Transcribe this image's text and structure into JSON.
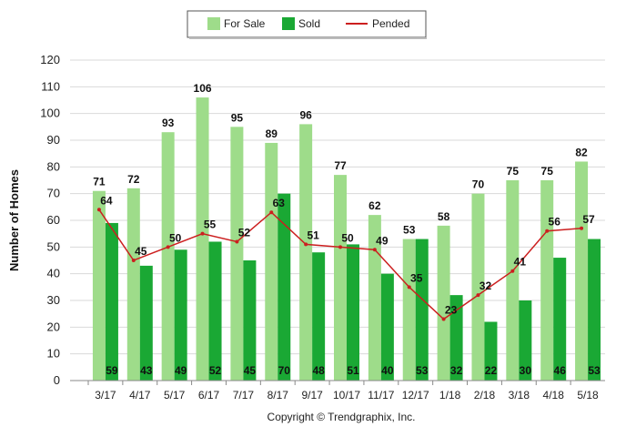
{
  "chart_data": {
    "type": "bar",
    "categories": [
      "3/17",
      "4/17",
      "5/17",
      "6/17",
      "7/17",
      "8/17",
      "9/17",
      "10/17",
      "11/17",
      "12/17",
      "1/18",
      "2/18",
      "3/18",
      "4/18",
      "5/18"
    ],
    "series": [
      {
        "name": "For Sale",
        "type": "bar",
        "color": "#9edc8a",
        "values": [
          71,
          72,
          93,
          106,
          95,
          89,
          96,
          77,
          62,
          53,
          58,
          70,
          75,
          75,
          82
        ]
      },
      {
        "name": "Sold",
        "type": "bar",
        "color": "#1aa834",
        "values": [
          59,
          43,
          49,
          52,
          45,
          70,
          48,
          51,
          40,
          53,
          32,
          22,
          30,
          46,
          53
        ]
      },
      {
        "name": "Pended",
        "type": "line",
        "color": "#cc1f1f",
        "values": [
          64,
          45,
          50,
          55,
          52,
          63,
          51,
          50,
          49,
          35,
          23,
          32,
          41,
          56,
          57
        ]
      }
    ],
    "ylabel": "Number of Homes",
    "ylim": [
      0,
      120
    ],
    "yticks": [
      0,
      10,
      20,
      30,
      40,
      50,
      60,
      70,
      80,
      90,
      100,
      110,
      120
    ],
    "grid": true,
    "legend_position": "top-center",
    "footer": "Copyright © Trendgraphix, Inc."
  }
}
